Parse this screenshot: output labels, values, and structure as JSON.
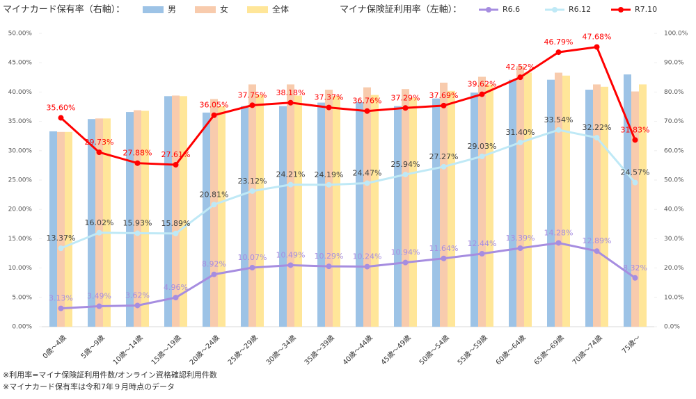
{
  "chart_data": {
    "type": "combo",
    "bar_legend_title": "マイナカード保有率（右軸）：",
    "line_legend_title": "マイナ保険証利用率（左軸）：",
    "categories": [
      "0歳～4歳",
      "5歳～9歳",
      "10歳～14歳",
      "15歳～19歳",
      "20歳～24歳",
      "25歳～29歳",
      "30歳～34歳",
      "35歳～39歳",
      "40歳～44歳",
      "45歳～49歳",
      "50歳～54歳",
      "55歳～59歳",
      "60歳～64歳",
      "65歳～69歳",
      "70歳～74歳",
      "75歳～"
    ],
    "ylim": [
      0,
      50
    ],
    "yticks": [
      {
        "value": 0,
        "label": "0.00%"
      },
      {
        "value": 5,
        "label": "5.00%"
      },
      {
        "value": 10,
        "label": "10.00%"
      },
      {
        "value": 15,
        "label": "15.00%"
      },
      {
        "value": 20,
        "label": "20.00%"
      },
      {
        "value": 25,
        "label": "25.00%"
      },
      {
        "value": 30,
        "label": "30.00%"
      },
      {
        "value": 35,
        "label": "35.00%"
      },
      {
        "value": 40,
        "label": "40.00%"
      },
      {
        "value": 45,
        "label": "45.00%"
      },
      {
        "value": 50,
        "label": "50.00%"
      }
    ],
    "y2lim": [
      0,
      100
    ],
    "y2ticks": [
      {
        "value": 0,
        "label": "0.0%"
      },
      {
        "value": 10,
        "label": "10.0%"
      },
      {
        "value": 20,
        "label": "20.0%"
      },
      {
        "value": 30,
        "label": "30.0%"
      },
      {
        "value": 40,
        "label": "40.0%"
      },
      {
        "value": 50,
        "label": "50.0%"
      },
      {
        "value": 60,
        "label": "60.0%"
      },
      {
        "value": 70,
        "label": "70.0%"
      },
      {
        "value": 80,
        "label": "80.0%"
      },
      {
        "value": 90,
        "label": "90.0%"
      },
      {
        "value": 100,
        "label": "100.0%"
      }
    ],
    "series": [
      {
        "name": "男",
        "type": "bar",
        "axis": "y2",
        "color": "#9dc3e6",
        "values": [
          66.6,
          70.8,
          73.2,
          78.6,
          73.0,
          75.2,
          75.2,
          76.4,
          76.6,
          75.2,
          77.8,
          79.8,
          84.2,
          84.2,
          80.8,
          86.0
        ]
      },
      {
        "name": "女",
        "type": "bar",
        "axis": "y2",
        "color": "#f8cbad",
        "values": [
          66.4,
          71.0,
          73.8,
          78.8,
          77.6,
          82.6,
          82.6,
          80.8,
          81.6,
          81.0,
          83.2,
          85.2,
          88.8,
          86.6,
          82.6,
          80.2
        ]
      },
      {
        "name": "全体",
        "type": "bar",
        "axis": "y2",
        "color": "#ffe699",
        "values": [
          66.4,
          71.0,
          73.6,
          78.6,
          75.2,
          79.0,
          78.8,
          78.6,
          79.0,
          78.0,
          80.4,
          82.6,
          86.6,
          85.6,
          81.8,
          82.6
        ]
      },
      {
        "name": "R6.6",
        "type": "line",
        "color": "#a68de0",
        "label_color": "#a68de0",
        "values": [
          3.13,
          3.49,
          3.62,
          4.96,
          8.92,
          10.07,
          10.49,
          10.29,
          10.24,
          10.94,
          11.64,
          12.44,
          13.39,
          14.28,
          12.89,
          8.32
        ],
        "value_labels": [
          "3.13%",
          "3.49%",
          "3.62%",
          "4.96%",
          "8.92%",
          "10.07%",
          "10.49%",
          "10.29%",
          "10.24%",
          "10.94%",
          "11.64%",
          "12.44%",
          "13.39%",
          "14.28%",
          "12.89%",
          "8.32%"
        ]
      },
      {
        "name": "R6.12",
        "type": "line",
        "color": "#bfe9f6",
        "label_color": "#404040",
        "values": [
          13.37,
          16.02,
          15.93,
          15.89,
          20.81,
          23.12,
          24.21,
          24.19,
          24.47,
          25.94,
          27.27,
          29.03,
          31.4,
          33.54,
          32.22,
          24.57
        ],
        "value_labels": [
          "13.37%",
          "16.02%",
          "15.93%",
          "15.89%",
          "20.81%",
          "23.12%",
          "24.21%",
          "24.19%",
          "24.47%",
          "25.94%",
          "27.27%",
          "29.03%",
          "31.40%",
          "33.54%",
          "32.22%",
          "24.57%"
        ]
      },
      {
        "name": "R7.10",
        "type": "line",
        "color": "#ff0000",
        "label_color": "#ff0000",
        "values": [
          35.6,
          29.73,
          27.88,
          27.61,
          36.05,
          37.75,
          38.18,
          37.37,
          36.76,
          37.29,
          37.69,
          39.62,
          42.52,
          46.79,
          47.68,
          31.83
        ],
        "value_labels": [
          "35.60%",
          "29.73%",
          "27.88%",
          "27.61%",
          "36.05%",
          "37.75%",
          "38.18%",
          "37.37%",
          "36.76%",
          "37.29%",
          "37.69%",
          "39.62%",
          "42.52%",
          "46.79%",
          "47.68%",
          "31.83%"
        ]
      }
    ],
    "notes": [
      "※利用率=マイナ保険証利用件数/オンライン資格確認利用件数",
      "※マイナカード保有率は令和7年９月時点のデータ"
    ]
  }
}
